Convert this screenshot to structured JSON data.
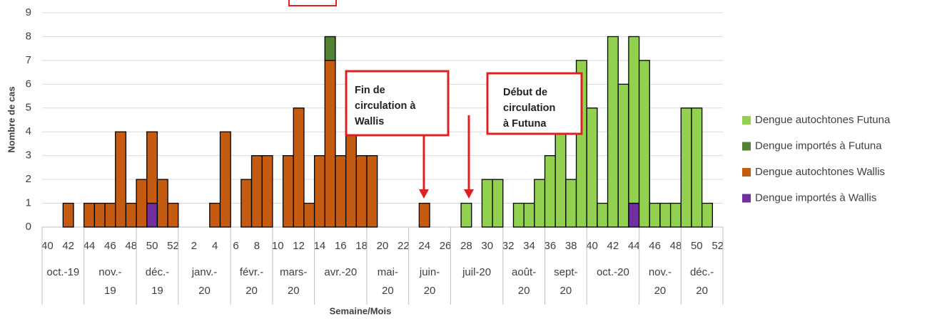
{
  "chart_data": {
    "type": "bar",
    "stacked": true,
    "y_label": "Nombre de cas",
    "x_label": "Semaine/Mois",
    "ylim": [
      0,
      9
    ],
    "yticks": [
      0,
      1,
      2,
      3,
      4,
      5,
      6,
      7,
      8,
      9
    ],
    "grid": true,
    "legend": "right",
    "categories": [
      "40",
      null,
      "42",
      null,
      "44",
      null,
      "46",
      null,
      "48",
      null,
      "50",
      null,
      "52",
      null,
      "2",
      null,
      "4",
      null,
      "6",
      null,
      "8",
      null,
      "10",
      null,
      "12",
      null,
      "14",
      null,
      "16",
      null,
      "18",
      null,
      "20",
      null,
      "22",
      null,
      "24",
      null,
      "26",
      null,
      "28",
      null,
      "30",
      null,
      "32",
      null,
      "34",
      null,
      "36",
      null,
      "38",
      null,
      "40",
      null,
      "42",
      null,
      "44",
      null,
      "46",
      null,
      "48",
      null,
      "50",
      null,
      "52"
    ],
    "months": [
      [
        "oct.-19"
      ],
      [
        "nov.-",
        "19"
      ],
      [
        "déc.-",
        "19"
      ],
      [
        "janv.-",
        "20"
      ],
      [
        "févr.-",
        "20"
      ],
      [
        "mars-",
        "20"
      ],
      [
        "avr.-20"
      ],
      [
        "mai-",
        "20"
      ],
      [
        "juin-",
        "20"
      ],
      [
        "juil-20"
      ],
      [
        "août-",
        "20"
      ],
      [
        "sept-",
        "20"
      ],
      [
        "oct.-20"
      ],
      [
        "nov.-",
        "20"
      ],
      [
        "déc.-",
        "20"
      ]
    ],
    "series": [
      {
        "name": "Dengue importés à Wallis",
        "color": "#7030a0",
        "values": [
          0,
          0,
          0,
          0,
          0,
          0,
          0,
          0,
          0,
          0,
          1,
          0,
          0,
          0,
          0,
          0,
          0,
          0,
          0,
          0,
          0,
          0,
          0,
          0,
          0,
          0,
          0,
          0,
          0,
          0,
          0,
          0,
          0,
          0,
          0,
          0,
          0,
          0,
          0,
          0,
          0,
          0,
          0,
          0,
          0,
          0,
          0,
          0,
          0,
          0,
          0,
          0,
          0,
          0,
          0,
          0,
          1,
          0,
          0,
          0,
          0,
          0,
          0,
          0,
          0
        ]
      },
      {
        "name": "Dengue autochtones Wallis",
        "color": "#c55a11",
        "values": [
          0,
          0,
          1,
          0,
          1,
          1,
          1,
          4,
          1,
          2,
          3,
          2,
          1,
          0,
          0,
          0,
          1,
          4,
          0,
          2,
          3,
          3,
          0,
          3,
          5,
          1,
          3,
          7,
          3,
          4,
          3,
          3,
          0,
          0,
          0,
          0,
          1,
          0,
          0,
          0,
          0,
          0,
          0,
          0,
          0,
          0,
          0,
          0,
          0,
          0,
          0,
          0,
          0,
          0,
          0,
          0,
          0,
          0,
          0,
          0,
          0,
          0,
          0,
          0,
          0
        ]
      },
      {
        "name": "Dengue importés à Futuna",
        "color": "#548235",
        "values": [
          0,
          0,
          0,
          0,
          0,
          0,
          0,
          0,
          0,
          0,
          0,
          0,
          0,
          0,
          0,
          0,
          0,
          0,
          0,
          0,
          0,
          0,
          0,
          0,
          0,
          0,
          0,
          1,
          0,
          0,
          0,
          0,
          0,
          0,
          0,
          0,
          0,
          0,
          0,
          0,
          0,
          0,
          0,
          0,
          0,
          0,
          0,
          0,
          0,
          0,
          0,
          0,
          0,
          0,
          0,
          0,
          0,
          0,
          0,
          0,
          0,
          0,
          0,
          0,
          0
        ]
      },
      {
        "name": "Dengue autochtones Futuna",
        "color": "#92d050",
        "values": [
          0,
          0,
          0,
          0,
          0,
          0,
          0,
          0,
          0,
          0,
          0,
          0,
          0,
          0,
          0,
          0,
          0,
          0,
          0,
          0,
          0,
          0,
          0,
          0,
          0,
          0,
          0,
          0,
          0,
          0,
          0,
          0,
          0,
          0,
          0,
          0,
          0,
          0,
          0,
          0,
          1,
          0,
          2,
          2,
          0,
          1,
          1,
          2,
          3,
          5,
          2,
          7,
          5,
          1,
          8,
          6,
          7,
          7,
          1,
          1,
          1,
          5,
          5,
          1,
          0
        ]
      }
    ],
    "annotations": [
      [
        "Fin de",
        "circulation à",
        "Wallis"
      ],
      [
        "Début de",
        "circulation",
        "à Futuna"
      ]
    ]
  }
}
